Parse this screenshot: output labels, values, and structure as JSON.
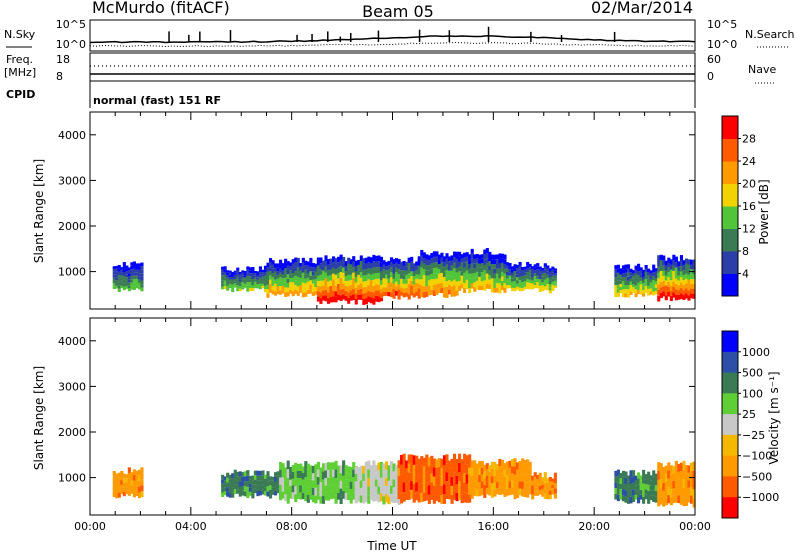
{
  "header": {
    "station": "McMurdo (fitACF)",
    "beam": "Beam 05",
    "date": "02/Mar/2014"
  },
  "noise_panel": {
    "left_label": "N.Sky",
    "right_label": "N.Search",
    "left_ticks": [
      "10^5",
      "10^0"
    ],
    "right_ticks": [
      "10^5",
      "10^0"
    ]
  },
  "freq_panel": {
    "left_label_line1": "Freq.",
    "left_label_line2": "[MHz]",
    "left_ticks": [
      "18",
      "8"
    ],
    "right_label": "Nave",
    "right_ticks": [
      "60",
      "0"
    ]
  },
  "cpid": {
    "label": "CPID",
    "value": "normal (fast) 151 RF"
  },
  "colors": {
    "power": [
      "#0000ff",
      "#2c3fa8",
      "#3a7a55",
      "#52c43a",
      "#f2d200",
      "#ff9a00",
      "#ff5a00",
      "#ff0000"
    ],
    "velocity": [
      "#ff0000",
      "#ff5a00",
      "#ff9a00",
      "#f5b800",
      "#c8c8c8",
      "#5fcf35",
      "#3a7a55",
      "#2c4fa8",
      "#0000ff"
    ]
  },
  "chart_data": [
    {
      "type": "heatmap",
      "panel": "power",
      "xlabel": "",
      "ylabel": "Slant Range [km]",
      "ylim": [
        180,
        4500
      ],
      "xlim_hours": [
        0,
        24
      ],
      "y_ticks": [
        "1000",
        "2000",
        "3000",
        "4000"
      ],
      "colorbar": {
        "label": "Power [dB]",
        "min": 0,
        "max": 32,
        "tick_labels": [
          "4",
          "8",
          "12",
          "16",
          "20",
          "24",
          "28"
        ]
      },
      "echo_bands": [
        {
          "start_hour": 0.9,
          "end_hour": 2.1,
          "low_km": 600,
          "high_km": 1150,
          "peak_db": 14
        },
        {
          "start_hour": 5.2,
          "end_hour": 7.0,
          "low_km": 600,
          "high_km": 1050,
          "peak_db": 16
        },
        {
          "start_hour": 7.0,
          "end_hour": 9.0,
          "low_km": 480,
          "high_km": 1250,
          "peak_db": 22
        },
        {
          "start_hour": 9.0,
          "end_hour": 11.5,
          "low_km": 330,
          "high_km": 1300,
          "peak_db": 30
        },
        {
          "start_hour": 11.5,
          "end_hour": 13.0,
          "low_km": 420,
          "high_km": 1250,
          "peak_db": 27
        },
        {
          "start_hour": 13.0,
          "end_hour": 14.5,
          "low_km": 480,
          "high_km": 1400,
          "peak_db": 24
        },
        {
          "start_hour": 14.5,
          "end_hour": 16.5,
          "low_km": 580,
          "high_km": 1450,
          "peak_db": 20
        },
        {
          "start_hour": 16.5,
          "end_hour": 18.5,
          "low_km": 580,
          "high_km": 1150,
          "peak_db": 18
        },
        {
          "start_hour": 20.8,
          "end_hour": 22.5,
          "low_km": 480,
          "high_km": 1100,
          "peak_db": 20
        },
        {
          "start_hour": 22.5,
          "end_hour": 24.0,
          "low_km": 400,
          "high_km": 1300,
          "peak_db": 30
        }
      ]
    },
    {
      "type": "heatmap",
      "panel": "velocity",
      "xlabel": "Time UT",
      "ylabel": "Slant Range [km]",
      "ylim": [
        180,
        4500
      ],
      "xlim_hours": [
        0,
        24
      ],
      "y_ticks": [
        "1000",
        "2000",
        "3000",
        "4000"
      ],
      "x_ticks": [
        "00:00",
        "04:00",
        "08:00",
        "12:00",
        "16:00",
        "20:00",
        "00:00"
      ],
      "colorbar": {
        "label": "Velocity [m s⁻¹]",
        "tick_labels": [
          "1000",
          "500",
          "100",
          "25",
          "−25",
          "−100",
          "−500",
          "−1000"
        ]
      },
      "echo_bands": [
        {
          "start_hour": 0.9,
          "end_hour": 2.1,
          "low_km": 600,
          "high_km": 1150,
          "velocity_class": "-100 to -25"
        },
        {
          "start_hour": 5.2,
          "end_hour": 7.5,
          "low_km": 600,
          "high_km": 1100,
          "velocity_class": "100 to 500"
        },
        {
          "start_hour": 7.5,
          "end_hour": 10.5,
          "low_km": 480,
          "high_km": 1300,
          "velocity_class": "25 to 100"
        },
        {
          "start_hour": 10.5,
          "end_hour": 12.2,
          "low_km": 450,
          "high_km": 1300,
          "velocity_class": "-25 to 25"
        },
        {
          "start_hour": 12.2,
          "end_hour": 15.0,
          "low_km": 480,
          "high_km": 1450,
          "velocity_class": "-500 to -100"
        },
        {
          "start_hour": 15.0,
          "end_hour": 17.5,
          "low_km": 580,
          "high_km": 1350,
          "velocity_class": "-100 to -25"
        },
        {
          "start_hour": 17.5,
          "end_hour": 18.5,
          "low_km": 580,
          "high_km": 1050,
          "velocity_class": "-100 to -25"
        },
        {
          "start_hour": 20.8,
          "end_hour": 22.5,
          "low_km": 480,
          "high_km": 1100,
          "velocity_class": "100 to 500"
        },
        {
          "start_hour": 22.5,
          "end_hour": 24.0,
          "low_km": 400,
          "high_km": 1300,
          "velocity_class": "-100 to -25"
        }
      ]
    }
  ]
}
